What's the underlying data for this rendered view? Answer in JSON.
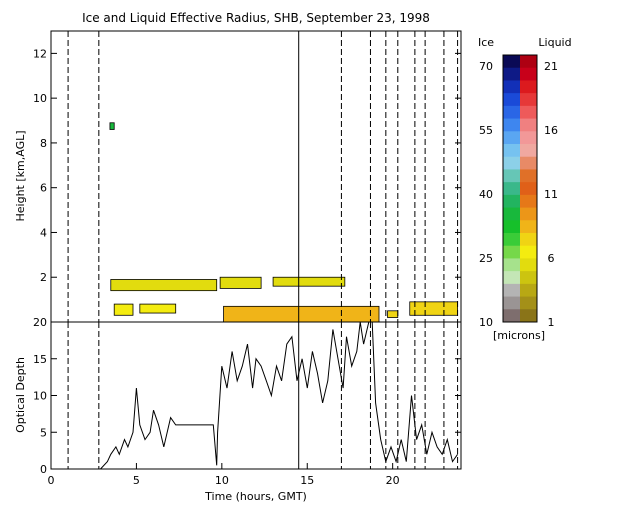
{
  "chart_data": [
    {
      "type": "heatmap",
      "title": "Ice and Liquid Effective Radius, SHB, September 23, 1998",
      "ylabel": "Height [km,AGL]",
      "xlim": [
        0,
        24
      ],
      "ylim": [
        0,
        13
      ],
      "yticks": [
        2,
        4,
        6,
        8,
        10,
        12
      ],
      "dashed_vertical_lines": [
        1.0,
        2.8,
        17.0,
        18.7,
        19.6,
        20.3,
        21.3,
        21.9,
        23.0,
        23.8
      ],
      "solid_vertical_lines": [
        14.5
      ],
      "cloud_layers": [
        {
          "phase": "liquid",
          "x_start": 3.5,
          "x_end": 9.7,
          "z_bottom": 1.4,
          "z_top": 1.9,
          "value": 5
        },
        {
          "phase": "liquid",
          "x_start": 9.9,
          "x_end": 12.3,
          "z_bottom": 1.5,
          "z_top": 2.0,
          "value": 5
        },
        {
          "phase": "liquid",
          "x_start": 13.0,
          "x_end": 17.2,
          "z_bottom": 1.6,
          "z_top": 2.0,
          "value": 5
        },
        {
          "phase": "liquid",
          "x_start": 3.7,
          "x_end": 4.8,
          "z_bottom": 0.3,
          "z_top": 0.8,
          "value": 6
        },
        {
          "phase": "liquid",
          "x_start": 5.2,
          "x_end": 7.3,
          "z_bottom": 0.4,
          "z_top": 0.8,
          "value": 6
        },
        {
          "phase": "liquid",
          "x_start": 10.1,
          "x_end": 19.2,
          "z_bottom": 0.0,
          "z_top": 0.7,
          "value": 8
        },
        {
          "phase": "liquid",
          "x_start": 19.7,
          "x_end": 20.3,
          "z_bottom": 0.2,
          "z_top": 0.5,
          "value": 7
        },
        {
          "phase": "liquid",
          "x_start": 21.0,
          "x_end": 23.8,
          "z_bottom": 0.3,
          "z_top": 0.9,
          "value": 7
        },
        {
          "phase": "ice",
          "x_start": 3.45,
          "x_end": 3.7,
          "z_bottom": 8.6,
          "z_top": 8.9,
          "value": 35
        }
      ]
    },
    {
      "type": "line",
      "ylabel": "Optical Depth",
      "xlabel": "Time (hours, GMT)",
      "xlim": [
        0,
        24
      ],
      "ylim": [
        0,
        20
      ],
      "xticks": [
        0,
        5,
        10,
        15,
        20
      ],
      "yticks": [
        0,
        5,
        10,
        15,
        20
      ],
      "x": [
        2.9,
        3.3,
        3.5,
        3.8,
        4.0,
        4.3,
        4.5,
        4.8,
        5.0,
        5.2,
        5.5,
        5.8,
        6.0,
        6.3,
        6.6,
        7.0,
        7.3,
        7.6,
        8.0,
        8.5,
        9.0,
        9.5,
        9.7,
        9.75,
        10.0,
        10.3,
        10.6,
        10.9,
        11.2,
        11.5,
        11.8,
        12.0,
        12.3,
        12.6,
        12.9,
        13.2,
        13.5,
        13.8,
        14.1,
        14.4,
        14.7,
        15.0,
        15.3,
        15.6,
        15.9,
        16.2,
        16.5,
        16.8,
        17.1,
        17.3,
        17.6,
        17.9,
        18.1,
        18.3,
        18.6,
        18.8,
        19.0,
        19.3,
        19.6,
        19.9,
        20.2,
        20.5,
        20.8,
        21.1,
        21.4,
        21.7,
        22.0,
        22.3,
        22.6,
        22.9,
        23.2,
        23.5,
        23.8
      ],
      "y": [
        0,
        1,
        2,
        3,
        2,
        4,
        3,
        5,
        11,
        6,
        4,
        5,
        8,
        6,
        3,
        7,
        6,
        6,
        6,
        6,
        6,
        6,
        0.5,
        5,
        14,
        11,
        16,
        12,
        14,
        17,
        11,
        15,
        14,
        12,
        10,
        14,
        12,
        17,
        18,
        12,
        15,
        11,
        16,
        13,
        9,
        12,
        19,
        15,
        11,
        18,
        14,
        16,
        20,
        17,
        21,
        20,
        9,
        4,
        1,
        3,
        1,
        4,
        1,
        10,
        4,
        6,
        2,
        5,
        3,
        2,
        4,
        1,
        2
      ]
    }
  ],
  "colorbar": {
    "ice_label": "Ice",
    "liquid_label": "Liquid",
    "ice_ticks": [
      "70",
      "55",
      "40",
      "25",
      "10"
    ],
    "liquid_ticks": [
      "21",
      "16",
      "11",
      "6",
      "1"
    ],
    "units": "[microns]",
    "ice_colors": [
      "#0a0a55",
      "#0e1a86",
      "#1230b8",
      "#1a4ad8",
      "#2a66e6",
      "#3e86ef",
      "#5aa6f2",
      "#76c2f0",
      "#8cd0e8",
      "#66c6b6",
      "#3ab88a",
      "#22b460",
      "#18b83c",
      "#16c02a",
      "#3acc38",
      "#76d84a",
      "#a6e28c",
      "#c4e6b6",
      "#b4b4b4",
      "#9a9494",
      "#7e6e6e"
    ],
    "liquid_colors": [
      "#ae0012",
      "#c8001a",
      "#dc1a1e",
      "#e63838",
      "#ee5a5a",
      "#f08080",
      "#f29898",
      "#f0a8a0",
      "#e88a66",
      "#e07028",
      "#e06018",
      "#e67818",
      "#ec9618",
      "#f0b418",
      "#f0d414",
      "#f4ec10",
      "#e2dc0e",
      "#ccc410",
      "#b8a814",
      "#a49018",
      "#8a7418"
    ]
  }
}
